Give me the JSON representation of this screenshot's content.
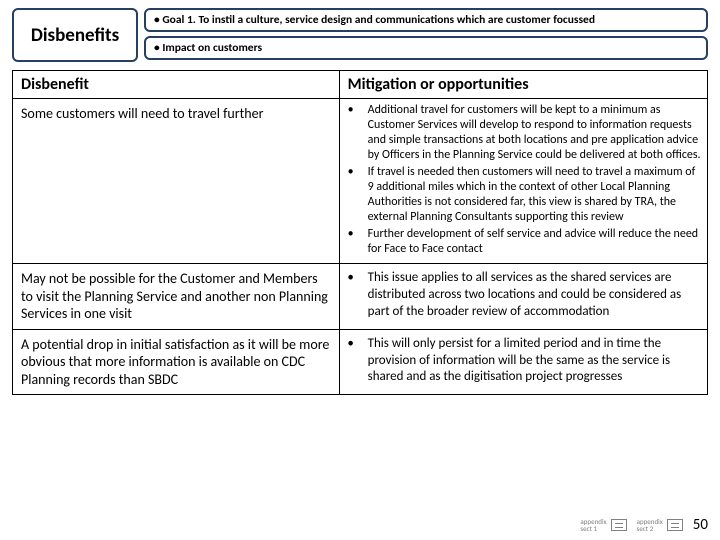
{
  "header": {
    "title": "Disbenefits",
    "goal": "• Goal 1. To instil a culture, service design and communications which are customer focussed",
    "impact": "• Impact on customers"
  },
  "table": {
    "col_left": "Disbenefit",
    "col_right": "Mitigation or opportunities",
    "rows": [
      {
        "left": "Some customers will need to travel further",
        "right_bullets": [
          "Additional travel for customers will be kept to a minimum as Customer Services will develop to respond to information requests and simple transactions at both locations and pre application advice by Officers in the Planning Service could be delivered at both offices.",
          "If travel is needed then customers will need to travel a maximum of 9 additional miles which in the context of other Local Planning Authorities is not considered far, this view is shared by TRA, the external Planning Consultants supporting this review",
          "Further development of self service and advice will reduce the need for Face to Face contact"
        ],
        "right_size": "sm"
      },
      {
        "left": "May not be possible for the Customer and Members to visit the Planning Service and another non Planning Services in one visit",
        "right_bullets": [
          "This issue applies to all services as the shared services are distributed across two locations and could be considered as part of the broader review of accommodation"
        ],
        "right_size": "lg"
      },
      {
        "left": "A potential drop in initial satisfaction as it will be more obvious that more information is available on CDC Planning records than SBDC",
        "right_bullets": [
          "This will only persist for a limited period and in time the provision of information will be the same as the service is shared and as the digitisation project progresses"
        ],
        "right_size": "lg"
      }
    ]
  },
  "footer": {
    "appendix1_line1": "appendix",
    "appendix1_line2": "sect 1",
    "appendix2_line1": "appendix",
    "appendix2_line2": "sect 2",
    "page": "50"
  },
  "colors": {
    "box_border": "#254061",
    "table_border": "#000000",
    "text": "#000000",
    "footer_grey": "#808080",
    "background": "#ffffff"
  }
}
